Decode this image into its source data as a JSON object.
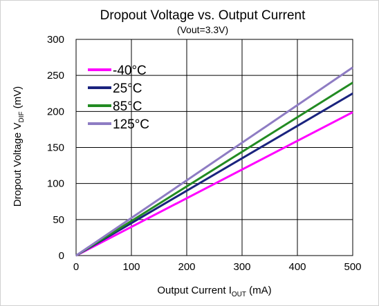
{
  "chart_data": {
    "type": "line",
    "title": "Dropout Voltage vs. Output Current",
    "subtitle": "(Vout=3.3V)",
    "xlabel": {
      "main": "Output Current I",
      "sub": "OUT",
      "unit": " (mA)"
    },
    "ylabel": {
      "main": "Dropout Voltage V",
      "sub": "DIF",
      "unit": " (mV)"
    },
    "xlim": [
      0,
      500
    ],
    "ylim": [
      0,
      300
    ],
    "xticks": [
      0,
      100,
      200,
      300,
      400,
      500
    ],
    "yticks": [
      0,
      50,
      100,
      150,
      200,
      250,
      300
    ],
    "grid": true,
    "legend_position": "top-left",
    "series": [
      {
        "name": "-40°C",
        "color": "#ff00ff",
        "x": [
          0,
          500
        ],
        "y": [
          0,
          199
        ]
      },
      {
        "name": "25°C",
        "color": "#1a237e",
        "x": [
          0,
          500
        ],
        "y": [
          0,
          225
        ]
      },
      {
        "name": "85°C",
        "color": "#228b22",
        "x": [
          0,
          500
        ],
        "y": [
          0,
          240
        ]
      },
      {
        "name": "125°C",
        "color": "#8e7cc3",
        "x": [
          0,
          500
        ],
        "y": [
          0,
          261
        ]
      }
    ]
  }
}
